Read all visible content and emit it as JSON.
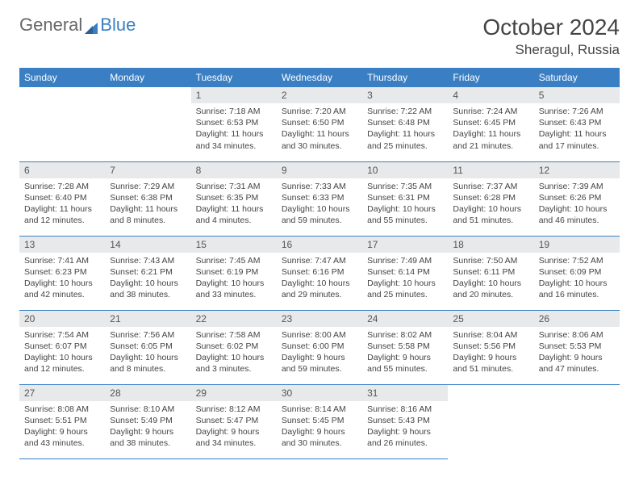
{
  "brand": {
    "part1": "General",
    "part2": "Blue"
  },
  "title": "October 2024",
  "location": "Sheragul, Russia",
  "colors": {
    "header_bg": "#3a7fc4",
    "header_fg": "#ffffff",
    "daynum_bg": "#e8e9ea",
    "rule": "#3a7fc4",
    "text": "#444444"
  },
  "weekdays": [
    "Sunday",
    "Monday",
    "Tuesday",
    "Wednesday",
    "Thursday",
    "Friday",
    "Saturday"
  ],
  "first_weekday_index": 2,
  "days": [
    {
      "n": "1",
      "sunrise": "7:18 AM",
      "sunset": "6:53 PM",
      "daylight": "11 hours and 34 minutes."
    },
    {
      "n": "2",
      "sunrise": "7:20 AM",
      "sunset": "6:50 PM",
      "daylight": "11 hours and 30 minutes."
    },
    {
      "n": "3",
      "sunrise": "7:22 AM",
      "sunset": "6:48 PM",
      "daylight": "11 hours and 25 minutes."
    },
    {
      "n": "4",
      "sunrise": "7:24 AM",
      "sunset": "6:45 PM",
      "daylight": "11 hours and 21 minutes."
    },
    {
      "n": "5",
      "sunrise": "7:26 AM",
      "sunset": "6:43 PM",
      "daylight": "11 hours and 17 minutes."
    },
    {
      "n": "6",
      "sunrise": "7:28 AM",
      "sunset": "6:40 PM",
      "daylight": "11 hours and 12 minutes."
    },
    {
      "n": "7",
      "sunrise": "7:29 AM",
      "sunset": "6:38 PM",
      "daylight": "11 hours and 8 minutes."
    },
    {
      "n": "8",
      "sunrise": "7:31 AM",
      "sunset": "6:35 PM",
      "daylight": "11 hours and 4 minutes."
    },
    {
      "n": "9",
      "sunrise": "7:33 AM",
      "sunset": "6:33 PM",
      "daylight": "10 hours and 59 minutes."
    },
    {
      "n": "10",
      "sunrise": "7:35 AM",
      "sunset": "6:31 PM",
      "daylight": "10 hours and 55 minutes."
    },
    {
      "n": "11",
      "sunrise": "7:37 AM",
      "sunset": "6:28 PM",
      "daylight": "10 hours and 51 minutes."
    },
    {
      "n": "12",
      "sunrise": "7:39 AM",
      "sunset": "6:26 PM",
      "daylight": "10 hours and 46 minutes."
    },
    {
      "n": "13",
      "sunrise": "7:41 AM",
      "sunset": "6:23 PM",
      "daylight": "10 hours and 42 minutes."
    },
    {
      "n": "14",
      "sunrise": "7:43 AM",
      "sunset": "6:21 PM",
      "daylight": "10 hours and 38 minutes."
    },
    {
      "n": "15",
      "sunrise": "7:45 AM",
      "sunset": "6:19 PM",
      "daylight": "10 hours and 33 minutes."
    },
    {
      "n": "16",
      "sunrise": "7:47 AM",
      "sunset": "6:16 PM",
      "daylight": "10 hours and 29 minutes."
    },
    {
      "n": "17",
      "sunrise": "7:49 AM",
      "sunset": "6:14 PM",
      "daylight": "10 hours and 25 minutes."
    },
    {
      "n": "18",
      "sunrise": "7:50 AM",
      "sunset": "6:11 PM",
      "daylight": "10 hours and 20 minutes."
    },
    {
      "n": "19",
      "sunrise": "7:52 AM",
      "sunset": "6:09 PM",
      "daylight": "10 hours and 16 minutes."
    },
    {
      "n": "20",
      "sunrise": "7:54 AM",
      "sunset": "6:07 PM",
      "daylight": "10 hours and 12 minutes."
    },
    {
      "n": "21",
      "sunrise": "7:56 AM",
      "sunset": "6:05 PM",
      "daylight": "10 hours and 8 minutes."
    },
    {
      "n": "22",
      "sunrise": "7:58 AM",
      "sunset": "6:02 PM",
      "daylight": "10 hours and 3 minutes."
    },
    {
      "n": "23",
      "sunrise": "8:00 AM",
      "sunset": "6:00 PM",
      "daylight": "9 hours and 59 minutes."
    },
    {
      "n": "24",
      "sunrise": "8:02 AM",
      "sunset": "5:58 PM",
      "daylight": "9 hours and 55 minutes."
    },
    {
      "n": "25",
      "sunrise": "8:04 AM",
      "sunset": "5:56 PM",
      "daylight": "9 hours and 51 minutes."
    },
    {
      "n": "26",
      "sunrise": "8:06 AM",
      "sunset": "5:53 PM",
      "daylight": "9 hours and 47 minutes."
    },
    {
      "n": "27",
      "sunrise": "8:08 AM",
      "sunset": "5:51 PM",
      "daylight": "9 hours and 43 minutes."
    },
    {
      "n": "28",
      "sunrise": "8:10 AM",
      "sunset": "5:49 PM",
      "daylight": "9 hours and 38 minutes."
    },
    {
      "n": "29",
      "sunrise": "8:12 AM",
      "sunset": "5:47 PM",
      "daylight": "9 hours and 34 minutes."
    },
    {
      "n": "30",
      "sunrise": "8:14 AM",
      "sunset": "5:45 PM",
      "daylight": "9 hours and 30 minutes."
    },
    {
      "n": "31",
      "sunrise": "8:16 AM",
      "sunset": "5:43 PM",
      "daylight": "9 hours and 26 minutes."
    }
  ],
  "labels": {
    "sunrise": "Sunrise:",
    "sunset": "Sunset:",
    "daylight": "Daylight:"
  }
}
